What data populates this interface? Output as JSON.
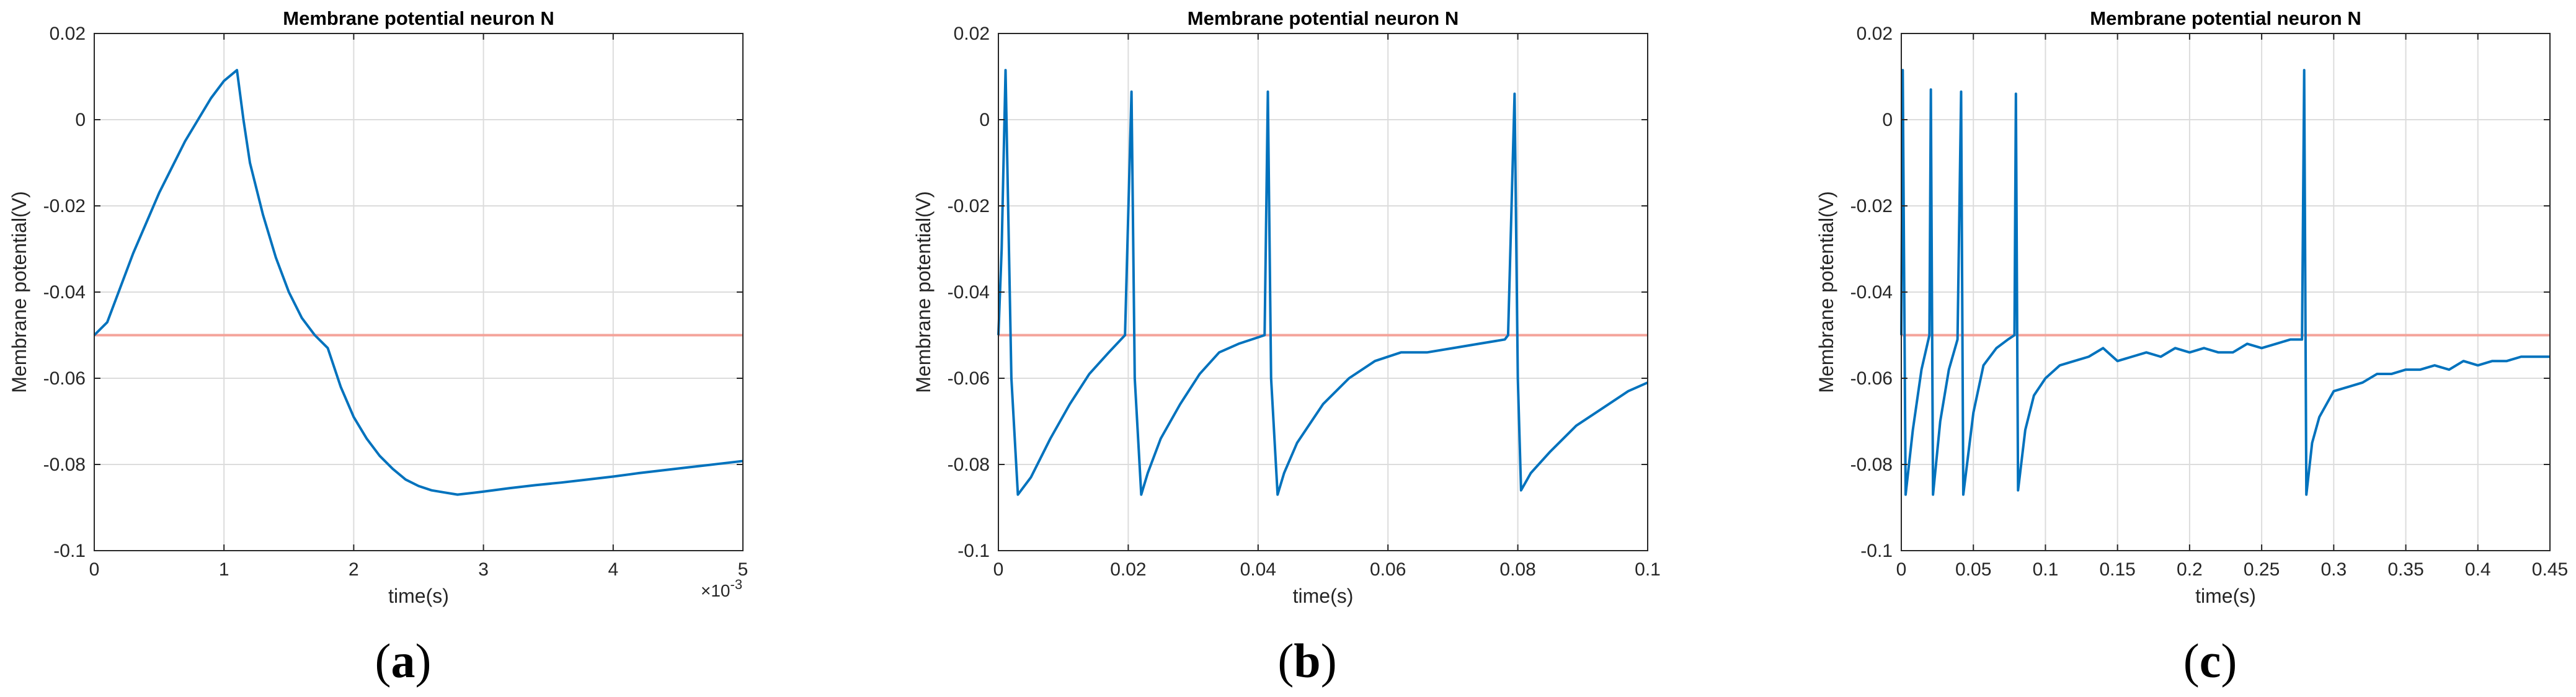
{
  "figure": {
    "captions": [
      "(a)",
      "(b)",
      "(c)"
    ],
    "caption_letters": [
      "a",
      "b",
      "c"
    ]
  },
  "colors": {
    "trace": "#0072BD",
    "threshold": "#F4A39A",
    "axis": "#262626",
    "grid": "#dcdcdc"
  },
  "chart_data": [
    {
      "type": "line",
      "title": "Membrane potential neuron N",
      "xlabel": "time(s)",
      "ylabel": "Membrane potential(V)",
      "xlim": [
        0,
        5
      ],
      "ylim": [
        -0.1,
        0.02
      ],
      "x_scale_exponent": "×10",
      "x_scale_power": "-3",
      "xticks": [
        0,
        1,
        2,
        3,
        4,
        5
      ],
      "xtick_labels": [
        "0",
        "1",
        "2",
        "3",
        "4",
        "5"
      ],
      "yticks": [
        -0.1,
        -0.08,
        -0.06,
        -0.04,
        -0.02,
        0,
        0.02
      ],
      "ytick_labels": [
        "-0.1",
        "-0.08",
        "-0.06",
        "-0.04",
        "-0.02",
        "0",
        "0.02"
      ],
      "grid": true,
      "threshold": -0.05,
      "series": [
        {
          "name": "membrane potential",
          "x": [
            0,
            0.1,
            0.2,
            0.3,
            0.4,
            0.5,
            0.6,
            0.7,
            0.8,
            0.9,
            1.0,
            1.1,
            1.15,
            1.2,
            1.3,
            1.4,
            1.5,
            1.6,
            1.7,
            1.8,
            1.9,
            2.0,
            2.1,
            2.2,
            2.3,
            2.4,
            2.5,
            2.6,
            2.7,
            2.8,
            3.0,
            3.2,
            3.4,
            3.6,
            3.8,
            4.0,
            4.2,
            4.4,
            4.6,
            4.8,
            5.0
          ],
          "y": [
            -0.05,
            -0.047,
            -0.039,
            -0.031,
            -0.024,
            -0.017,
            -0.011,
            -0.005,
            0.0,
            0.005,
            0.009,
            0.0115,
            0.0,
            -0.01,
            -0.022,
            -0.032,
            -0.04,
            -0.046,
            -0.05,
            -0.053,
            -0.062,
            -0.069,
            -0.074,
            -0.078,
            -0.081,
            -0.0835,
            -0.085,
            -0.086,
            -0.0865,
            -0.087,
            -0.0863,
            -0.0855,
            -0.0848,
            -0.0842,
            -0.0835,
            -0.0828,
            -0.082,
            -0.0813,
            -0.0806,
            -0.0799,
            -0.0792
          ]
        }
      ]
    },
    {
      "type": "line",
      "title": "Membrane potential neuron N",
      "xlabel": "time(s)",
      "ylabel": "Membrane potential(V)",
      "xlim": [
        0,
        0.1
      ],
      "ylim": [
        -0.1,
        0.02
      ],
      "xticks": [
        0,
        0.02,
        0.04,
        0.06,
        0.08,
        0.1
      ],
      "xtick_labels": [
        "0",
        "0.02",
        "0.04",
        "0.06",
        "0.08",
        "0.1"
      ],
      "yticks": [
        -0.1,
        -0.08,
        -0.06,
        -0.04,
        -0.02,
        0,
        0.02
      ],
      "ytick_labels": [
        "-0.1",
        "-0.08",
        "-0.06",
        "-0.04",
        "-0.02",
        "0",
        "0.02"
      ],
      "grid": true,
      "threshold": -0.05,
      "series": [
        {
          "name": "membrane potential",
          "x": [
            0,
            0.0005,
            0.0011,
            0.002,
            0.003,
            0.005,
            0.008,
            0.011,
            0.014,
            0.017,
            0.0195,
            0.0205,
            0.021,
            0.022,
            0.023,
            0.025,
            0.028,
            0.031,
            0.034,
            0.037,
            0.04,
            0.041,
            0.0415,
            0.042,
            0.043,
            0.044,
            0.046,
            0.05,
            0.054,
            0.058,
            0.062,
            0.066,
            0.07,
            0.074,
            0.078,
            0.0785,
            0.0795,
            0.08,
            0.0805,
            0.082,
            0.085,
            0.089,
            0.093,
            0.097,
            0.1
          ],
          "y": [
            -0.05,
            -0.03,
            0.0115,
            -0.06,
            -0.087,
            -0.083,
            -0.074,
            -0.066,
            -0.059,
            -0.054,
            -0.05,
            0.0065,
            -0.06,
            -0.087,
            -0.082,
            -0.074,
            -0.066,
            -0.059,
            -0.054,
            -0.052,
            -0.0505,
            -0.05,
            0.0065,
            -0.06,
            -0.087,
            -0.082,
            -0.075,
            -0.066,
            -0.06,
            -0.056,
            -0.054,
            -0.054,
            -0.053,
            -0.052,
            -0.051,
            -0.05,
            0.006,
            -0.06,
            -0.086,
            -0.082,
            -0.077,
            -0.071,
            -0.067,
            -0.063,
            -0.061
          ]
        }
      ]
    },
    {
      "type": "line",
      "title": "Membrane potential neuron N",
      "xlabel": "time(s)",
      "ylabel": "Membrane potential(V)",
      "xlim": [
        0,
        0.45
      ],
      "ylim": [
        -0.1,
        0.02
      ],
      "xticks": [
        0,
        0.05,
        0.1,
        0.15,
        0.2,
        0.25,
        0.3,
        0.35,
        0.4,
        0.45
      ],
      "xtick_labels": [
        "0",
        "0.05",
        "0.1",
        "0.15",
        "0.2",
        "0.25",
        "0.3",
        "0.35",
        "0.4",
        "0.45"
      ],
      "yticks": [
        -0.1,
        -0.08,
        -0.06,
        -0.04,
        -0.02,
        0,
        0.02
      ],
      "ytick_labels": [
        "-0.1",
        "-0.08",
        "-0.06",
        "-0.04",
        "-0.02",
        "0",
        "0.02"
      ],
      "grid": true,
      "threshold": -0.05,
      "series": [
        {
          "name": "membrane potential",
          "x": [
            0,
            0.001,
            0.003,
            0.008,
            0.014,
            0.0195,
            0.0205,
            0.022,
            0.027,
            0.033,
            0.039,
            0.0415,
            0.043,
            0.05,
            0.057,
            0.066,
            0.074,
            0.0785,
            0.0795,
            0.081,
            0.086,
            0.092,
            0.1,
            0.11,
            0.12,
            0.13,
            0.14,
            0.15,
            0.16,
            0.17,
            0.18,
            0.19,
            0.2,
            0.21,
            0.22,
            0.23,
            0.24,
            0.25,
            0.26,
            0.27,
            0.278,
            0.2795,
            0.281,
            0.285,
            0.29,
            0.3,
            0.31,
            0.32,
            0.33,
            0.34,
            0.35,
            0.36,
            0.37,
            0.38,
            0.39,
            0.4,
            0.41,
            0.42,
            0.43,
            0.44,
            0.45
          ],
          "y": [
            -0.05,
            0.0115,
            -0.087,
            -0.072,
            -0.058,
            -0.05,
            0.007,
            -0.087,
            -0.07,
            -0.058,
            -0.051,
            0.0065,
            -0.087,
            -0.068,
            -0.057,
            -0.053,
            -0.051,
            -0.05,
            0.006,
            -0.086,
            -0.072,
            -0.064,
            -0.06,
            -0.057,
            -0.056,
            -0.055,
            -0.053,
            -0.056,
            -0.055,
            -0.054,
            -0.055,
            -0.053,
            -0.054,
            -0.053,
            -0.054,
            -0.054,
            -0.052,
            -0.053,
            -0.052,
            -0.051,
            -0.051,
            0.0115,
            -0.087,
            -0.075,
            -0.069,
            -0.063,
            -0.062,
            -0.061,
            -0.059,
            -0.059,
            -0.058,
            -0.058,
            -0.057,
            -0.058,
            -0.056,
            -0.057,
            -0.056,
            -0.056,
            -0.055,
            -0.055,
            -0.055
          ]
        }
      ]
    }
  ]
}
